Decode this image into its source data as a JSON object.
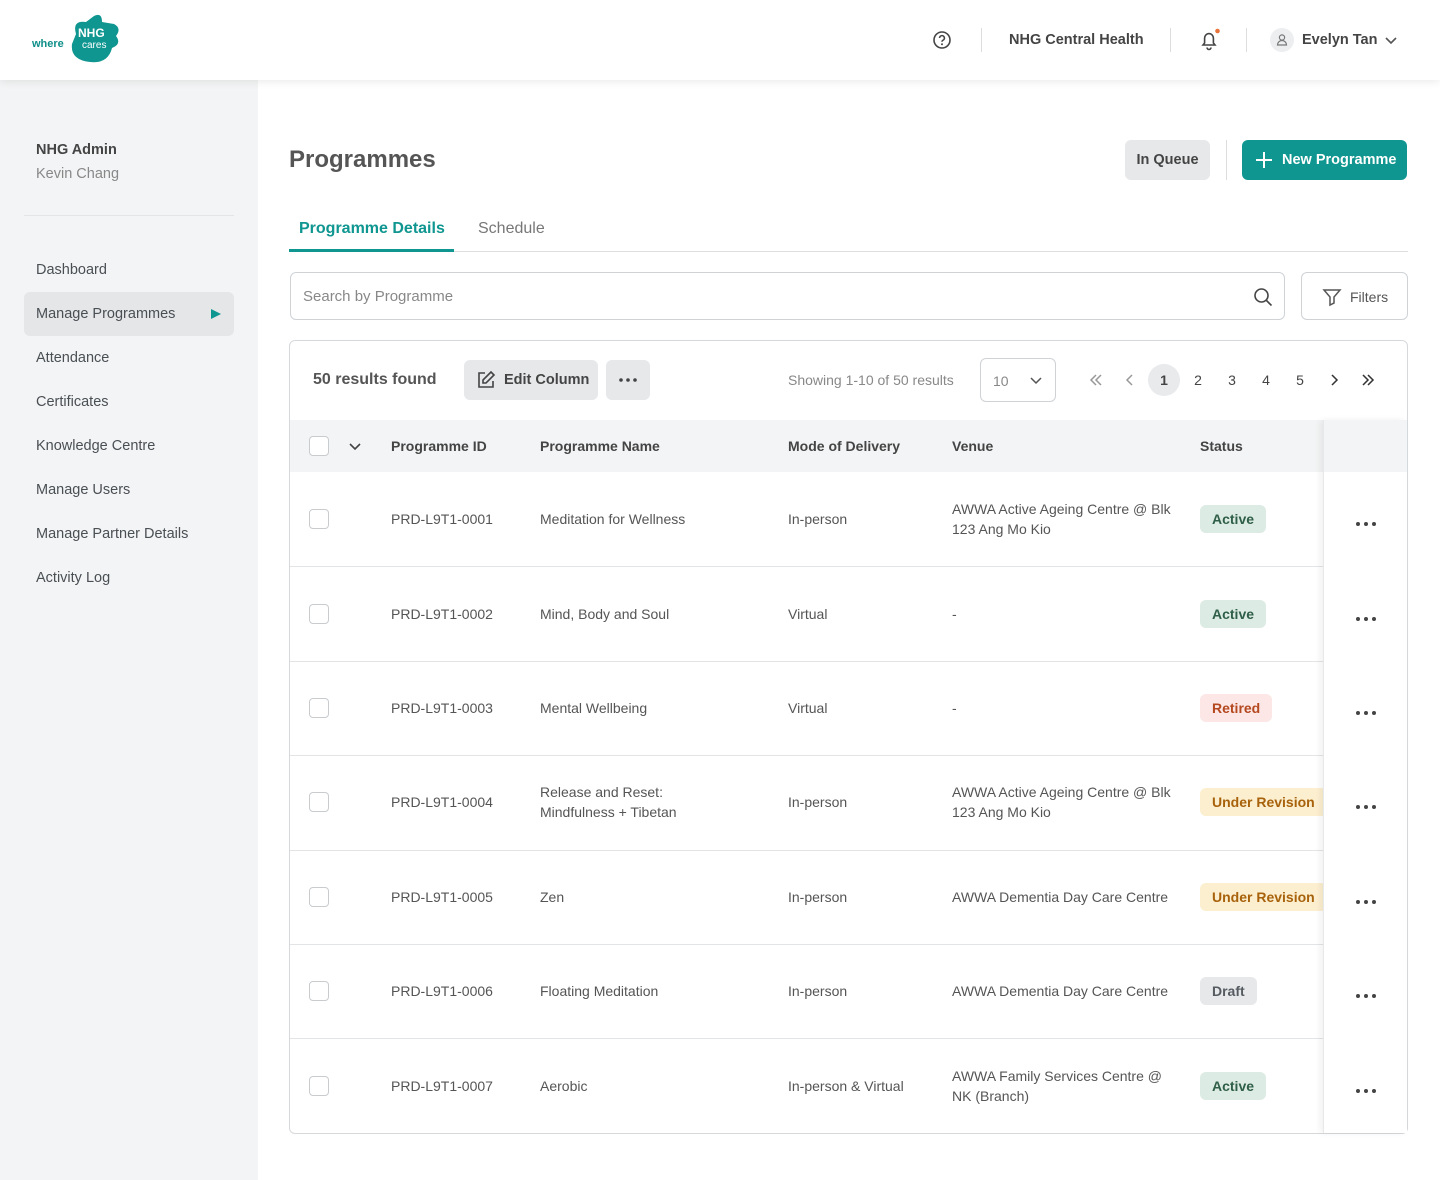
{
  "header": {
    "logo_where": "where",
    "logo_nhg": "NHG",
    "logo_cares": "cares",
    "organisation": "NHG Central Health",
    "user": "Evelyn Tan"
  },
  "sidebar": {
    "role": "NHG Admin",
    "name": "Kevin Chang",
    "nav": [
      "Dashboard",
      "Manage Programmes",
      "Attendance",
      "Certificates",
      "Knowledge Centre",
      "Manage Users",
      "Manage Partner Details",
      "Activity Log"
    ]
  },
  "page": {
    "title": "Programmes",
    "in_queue": "In Queue",
    "new_programme": "New Programme",
    "tabs": [
      "Programme Details",
      "Schedule"
    ],
    "search_placeholder": "Search by Programme",
    "filters": "Filters"
  },
  "toolbar": {
    "results": "50 results found",
    "edit_column": "Edit Column",
    "showing": "Showing 1-10 of 50 results",
    "page_size": "10",
    "pages": [
      1,
      2,
      3,
      4,
      5
    ]
  },
  "table": {
    "columns": [
      "Programme ID",
      "Programme Name",
      "Mode of Delivery",
      "Venue",
      "Status"
    ],
    "rows": [
      {
        "id": "PRD-L9T1-0001",
        "name": "Meditation for Wellness",
        "mode": "In-person",
        "venue": "AWWA Active Ageing Centre @ Blk 123 Ang Mo Kio",
        "status": {
          "label": "Active",
          "color": "#2f5f48",
          "background": "#dcebe3"
        }
      },
      {
        "id": "PRD-L9T1-0002",
        "name": "Mind, Body and Soul",
        "mode": "Virtual",
        "venue": "-",
        "status": {
          "label": "Active",
          "color": "#2f5f48",
          "background": "#dcebe3"
        }
      },
      {
        "id": "PRD-L9T1-0003",
        "name": "Mental Wellbeing",
        "mode": "Virtual",
        "venue": "-",
        "status": {
          "label": "Retired",
          "color": "#b4481f",
          "background": "#fde7e6"
        }
      },
      {
        "id": "PRD-L9T1-0004",
        "name": "Release and Reset: Mindfulness + Tibetan",
        "mode": "In-person",
        "venue": "AWWA Active Ageing Centre @ Blk 123 Ang Mo Kio",
        "status": {
          "label": "Under Revision",
          "color": "#a8620b",
          "background": "#fcefcf"
        }
      },
      {
        "id": "PRD-L9T1-0005",
        "name": "Zen",
        "mode": "In-person",
        "venue": "AWWA Dementia Day Care Centre",
        "status": {
          "label": "Under Revision",
          "color": "#a8620b",
          "background": "#fcefcf"
        }
      },
      {
        "id": "PRD-L9T1-0006",
        "name": "Floating Meditation",
        "mode": "In-person",
        "venue": "AWWA Dementia Day Care Centre",
        "status": {
          "label": "Draft",
          "color": "#555b60",
          "background": "#e6e8ea"
        }
      },
      {
        "id": "PRD-L9T1-0007",
        "name": "Aerobic",
        "mode": "In-person & Virtual",
        "venue": "AWWA Family Services Centre @ NK (Branch)",
        "status": {
          "label": "Active",
          "color": "#2f5f48",
          "background": "#dcebe3"
        }
      }
    ]
  }
}
